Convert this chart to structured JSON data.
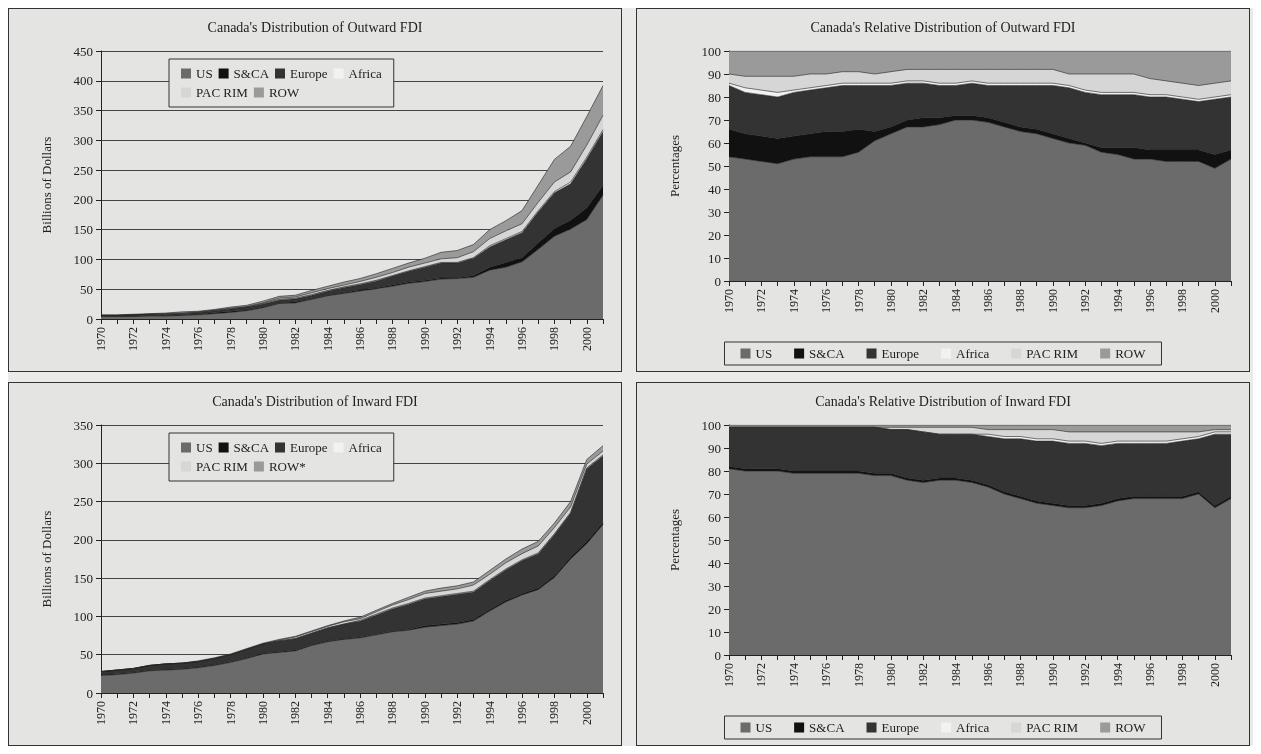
{
  "chart_data": [
    {
      "type": "area",
      "title": "Canada's Distribution of Outward FDI",
      "ylabel": "Billions of Dollars",
      "stacked": true,
      "grid": "y",
      "legend": "top left",
      "categories": [
        "1970",
        null,
        "1972",
        null,
        "1974",
        null,
        "1976",
        null,
        "1978",
        null,
        "1980",
        null,
        "1982",
        null,
        "1984",
        null,
        "1986",
        null,
        "1988",
        null,
        "1990",
        null,
        "1992",
        null,
        "1994",
        null,
        "1996",
        null,
        "1998",
        null,
        "2000",
        null
      ],
      "ylim": [
        0,
        450
      ],
      "yticks": [
        0,
        50,
        100,
        150,
        200,
        250,
        300,
        350,
        400,
        450
      ],
      "series": [
        {
          "name": "US",
          "color": "#6b6b6b",
          "values": [
            4,
            4,
            4,
            5,
            5,
            6,
            7,
            9,
            11,
            14,
            19,
            26,
            27,
            33,
            39,
            43,
            47,
            51,
            55,
            60,
            63,
            67,
            68,
            70,
            82,
            87,
            96,
            117,
            139,
            151,
            167,
            208
          ]
        },
        {
          "name": "S&CA",
          "color": "#111111",
          "values": [
            1,
            1,
            1,
            1,
            1,
            1,
            1,
            2,
            2,
            1,
            1,
            1,
            2,
            1,
            1,
            1,
            2,
            1,
            2,
            2,
            2,
            2,
            1,
            3,
            5,
            8,
            7,
            11,
            13,
            15,
            20,
            16
          ]
        },
        {
          "name": "Europe",
          "color": "#333333",
          "values": [
            1,
            1,
            2,
            2,
            2,
            2,
            3,
            3,
            4,
            5,
            5,
            5,
            5,
            6,
            7,
            9,
            9,
            12,
            15,
            18,
            22,
            25,
            25,
            29,
            34,
            38,
            42,
            52,
            60,
            61,
            82,
            91
          ]
        },
        {
          "name": "Africa",
          "color": "#f2f2f2",
          "values": [
            0,
            0,
            0,
            0,
            0,
            0,
            0,
            0,
            0,
            0,
            1,
            1,
            1,
            1,
            1,
            1,
            1,
            1,
            1,
            1,
            1,
            1,
            1,
            1,
            2,
            2,
            2,
            2,
            2,
            3,
            3,
            3
          ]
        },
        {
          "name": "PAC RIM",
          "color": "#d6d6d6",
          "values": [
            0,
            0,
            0,
            0,
            1,
            1,
            1,
            1,
            1,
            1,
            1,
            2,
            2,
            3,
            3,
            3,
            4,
            5,
            5,
            6,
            6,
            6,
            8,
            10,
            12,
            13,
            13,
            14,
            16,
            17,
            20,
            24
          ]
        },
        {
          "name": "ROW",
          "color": "#9a9a9a",
          "values": [
            1,
            1,
            1,
            1,
            1,
            2,
            1,
            1,
            2,
            2,
            3,
            3,
            3,
            4,
            4,
            5,
            5,
            6,
            7,
            7,
            8,
            11,
            12,
            12,
            15,
            17,
            22,
            29,
            38,
            43,
            48,
            50
          ]
        }
      ]
    },
    {
      "type": "area",
      "title": "Canada's Relative Distribution of Outward FDI",
      "ylabel": "Percentages",
      "stacked": true,
      "grid": false,
      "legend": "bottom",
      "categories": [
        "1970",
        null,
        "1972",
        null,
        "1974",
        null,
        "1976",
        null,
        "1978",
        null,
        "1980",
        null,
        "1982",
        null,
        "1984",
        null,
        "1986",
        null,
        "1988",
        null,
        "1990",
        null,
        "1992",
        null,
        "1994",
        null,
        "1996",
        null,
        "1998",
        null,
        "2000",
        null
      ],
      "ylim": [
        0,
        100
      ],
      "yticks": [
        0,
        10,
        20,
        30,
        40,
        50,
        60,
        70,
        80,
        90,
        100
      ],
      "series": [
        {
          "name": "US",
          "color": "#6b6b6b",
          "values": [
            54,
            53,
            52,
            51,
            53,
            54,
            54,
            54,
            56,
            61,
            64,
            67,
            67,
            68,
            70,
            70,
            69,
            67,
            65,
            64,
            62,
            60,
            59,
            56,
            55,
            53,
            53,
            52,
            52,
            52,
            49,
            53
          ]
        },
        {
          "name": "S&CA",
          "color": "#111111",
          "values": [
            12,
            11,
            11,
            11,
            10,
            10,
            11,
            11,
            10,
            4,
            3,
            3,
            4,
            3,
            2,
            2,
            2,
            2,
            2,
            2,
            2,
            2,
            1,
            2,
            3,
            5,
            4,
            5,
            5,
            5,
            6,
            4
          ]
        },
        {
          "name": "Europe",
          "color": "#333333",
          "values": [
            19,
            18,
            18,
            18,
            19,
            19,
            19,
            20,
            19,
            20,
            18,
            16,
            15,
            14,
            13,
            14,
            14,
            16,
            18,
            19,
            21,
            22,
            22,
            23,
            23,
            23,
            23,
            23,
            22,
            21,
            24,
            23
          ]
        },
        {
          "name": "Africa",
          "color": "#f2f2f2",
          "values": [
            1,
            2,
            2,
            2,
            1,
            1,
            1,
            1,
            1,
            1,
            1,
            1,
            1,
            1,
            1,
            1,
            1,
            1,
            1,
            1,
            1,
            1,
            1,
            1,
            1,
            1,
            1,
            1,
            1,
            1,
            1,
            1
          ]
        },
        {
          "name": "PAC RIM",
          "color": "#d6d6d6",
          "values": [
            4,
            5,
            6,
            7,
            6,
            6,
            5,
            5,
            5,
            4,
            5,
            5,
            5,
            6,
            6,
            5,
            6,
            6,
            6,
            6,
            6,
            5,
            7,
            8,
            8,
            8,
            7,
            6,
            6,
            6,
            6,
            6
          ]
        },
        {
          "name": "ROW",
          "color": "#9a9a9a",
          "values": [
            10,
            11,
            11,
            11,
            11,
            10,
            10,
            9,
            9,
            10,
            9,
            8,
            8,
            8,
            8,
            8,
            8,
            8,
            8,
            8,
            8,
            10,
            10,
            10,
            10,
            10,
            12,
            13,
            14,
            15,
            14,
            13
          ]
        }
      ]
    },
    {
      "type": "area",
      "title": "Canada's Distribution of Inward FDI",
      "ylabel": "Billions of Dollars",
      "stacked": true,
      "grid": "y",
      "legend": "top left",
      "categories": [
        "1970",
        null,
        "1972",
        null,
        "1974",
        null,
        "1976",
        null,
        "1978",
        null,
        "1980",
        null,
        "1982",
        null,
        "1984",
        null,
        "1986",
        null,
        "1988",
        null,
        "1990",
        null,
        "1992",
        null,
        "1994",
        null,
        "1996",
        null,
        "1998",
        null,
        "2000",
        null
      ],
      "ylim": [
        0,
        350
      ],
      "yticks": [
        0,
        50,
        100,
        150,
        200,
        250,
        300,
        350
      ],
      "series": [
        {
          "name": "US",
          "color": "#6b6b6b",
          "values": [
            23,
            24,
            26,
            29,
            30,
            31,
            33,
            36,
            40,
            45,
            51,
            53,
            55,
            62,
            67,
            70,
            72,
            76,
            80,
            82,
            86,
            88,
            90,
            94,
            107,
            119,
            128,
            135,
            151,
            175,
            195,
            220
          ]
        },
        {
          "name": "S&CA",
          "color": "#111111",
          "values": [
            1,
            1,
            1,
            1,
            1,
            1,
            1,
            1,
            1,
            1,
            1,
            1,
            1,
            1,
            1,
            1,
            1,
            1,
            1,
            1,
            2,
            2,
            2,
            2,
            2,
            2,
            2,
            2,
            2,
            3,
            3,
            3
          ]
        },
        {
          "name": "Europe",
          "color": "#333333",
          "values": [
            4,
            5,
            5,
            6,
            7,
            7,
            7,
            8,
            9,
            11,
            12,
            14,
            15,
            15,
            17,
            19,
            21,
            25,
            29,
            33,
            35,
            36,
            37,
            36,
            38,
            40,
            43,
            45,
            54,
            57,
            95,
            87
          ]
        },
        {
          "name": "Africa",
          "color": "#f2f2f2",
          "values": [
            0,
            0,
            0,
            0,
            0,
            0,
            0,
            0,
            0,
            0,
            0,
            0,
            0,
            0,
            0,
            0,
            1,
            1,
            1,
            1,
            1,
            1,
            1,
            1,
            1,
            1,
            1,
            1,
            1,
            1,
            1,
            1
          ]
        },
        {
          "name": "PAC RIM",
          "color": "#d6d6d6",
          "values": [
            0,
            0,
            0,
            0,
            0,
            0,
            0,
            0,
            0,
            0,
            0,
            1,
            2,
            2,
            2,
            3,
            2,
            3,
            4,
            5,
            6,
            6,
            6,
            8,
            7,
            8,
            8,
            9,
            8,
            7,
            5,
            5
          ]
        },
        {
          "name": "ROW*",
          "color": "#9a9a9a",
          "values": [
            0,
            0,
            0,
            0,
            0,
            0,
            1,
            1,
            1,
            1,
            1,
            1,
            1,
            1,
            1,
            1,
            2,
            2,
            2,
            3,
            3,
            4,
            4,
            4,
            5,
            5,
            6,
            6,
            6,
            7,
            6,
            7
          ]
        }
      ]
    },
    {
      "type": "area",
      "title": "Canada's Relative Distribution of Inward FDI",
      "ylabel": "Percentages",
      "stacked": true,
      "grid": false,
      "legend": "bottom",
      "categories": [
        "1970",
        null,
        "1972",
        null,
        "1974",
        null,
        "1976",
        null,
        "1978",
        null,
        "1980",
        null,
        "1982",
        null,
        "1984",
        null,
        "1986",
        null,
        "1988",
        null,
        "1990",
        null,
        "1992",
        null,
        "1994",
        null,
        "1996",
        null,
        "1998",
        null,
        "2000",
        null
      ],
      "ylim": [
        0,
        100
      ],
      "yticks": [
        0,
        10,
        20,
        30,
        40,
        50,
        60,
        70,
        80,
        90,
        100
      ],
      "series": [
        {
          "name": "US",
          "color": "#6b6b6b",
          "values": [
            81,
            80,
            80,
            80,
            79,
            79,
            79,
            79,
            79,
            78,
            78,
            76,
            75,
            76,
            76,
            75,
            73,
            70,
            68,
            66,
            65,
            64,
            64,
            65,
            67,
            68,
            68,
            68,
            68,
            70,
            64,
            68
          ]
        },
        {
          "name": "S&CA",
          "color": "#111111",
          "values": [
            1,
            1,
            1,
            1,
            1,
            1,
            1,
            1,
            1,
            1,
            1,
            1,
            1,
            1,
            1,
            1,
            1,
            1,
            1,
            1,
            1,
            1,
            1,
            1,
            1,
            1,
            1,
            1,
            1,
            1,
            1,
            1
          ]
        },
        {
          "name": "Europe",
          "color": "#333333",
          "values": [
            17,
            18,
            18,
            18,
            19,
            19,
            19,
            19,
            19,
            20,
            19,
            21,
            21,
            19,
            19,
            20,
            21,
            23,
            25,
            26,
            27,
            27,
            27,
            25,
            24,
            23,
            23,
            23,
            24,
            23,
            31,
            27
          ]
        },
        {
          "name": "Africa",
          "color": "#f2f2f2",
          "values": [
            0,
            0,
            0,
            0,
            0,
            0,
            0,
            0,
            0,
            0,
            0,
            0,
            0,
            0,
            0,
            0,
            1,
            1,
            1,
            1,
            1,
            1,
            1,
            1,
            1,
            1,
            1,
            1,
            1,
            1,
            1,
            1
          ]
        },
        {
          "name": "PAC RIM",
          "color": "#d6d6d6",
          "values": [
            0,
            0,
            0,
            0,
            0,
            0,
            0,
            0,
            0,
            0,
            1,
            1,
            2,
            3,
            3,
            3,
            2,
            3,
            3,
            4,
            4,
            4,
            4,
            5,
            4,
            4,
            4,
            4,
            3,
            2,
            1,
            1
          ]
        },
        {
          "name": "ROW",
          "color": "#9a9a9a",
          "values": [
            1,
            1,
            1,
            1,
            1,
            1,
            1,
            1,
            1,
            1,
            1,
            1,
            1,
            1,
            1,
            1,
            2,
            2,
            2,
            2,
            2,
            3,
            3,
            3,
            3,
            3,
            3,
            3,
            3,
            3,
            2,
            2
          ]
        }
      ]
    }
  ]
}
